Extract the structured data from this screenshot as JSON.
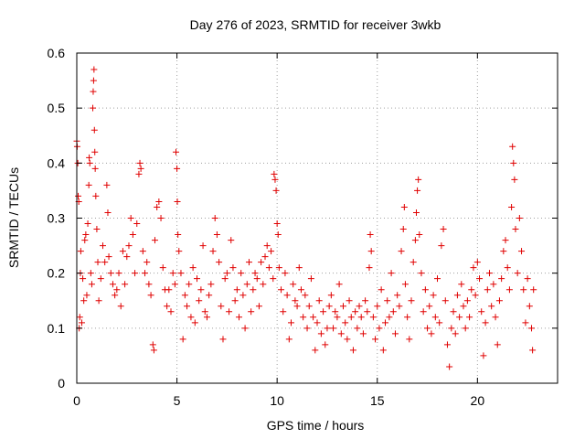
{
  "chart_data": {
    "type": "scatter",
    "title": "Day 276 of 2023, SRMTID for receiver 3wkb",
    "xlabel": "GPS time / hours",
    "ylabel": "SRMTID / TECUs",
    "xlim": [
      0,
      24
    ],
    "ylim": [
      0,
      0.6
    ],
    "xticks": [
      0,
      5,
      10,
      15,
      20
    ],
    "xtick_labels": [
      "0",
      "5",
      "10",
      "15",
      "20"
    ],
    "yticks": [
      0,
      0.1,
      0.2,
      0.3,
      0.4,
      0.5,
      0.6
    ],
    "ytick_labels": [
      "0",
      "0.1",
      "0.2",
      "0.3",
      "0.4",
      "0.5",
      "0.6"
    ],
    "grid": true,
    "marker": "+",
    "marker_color": "#e00000",
    "series": [
      {
        "name": "SRMTID",
        "points": [
          [
            0.0,
            0.44
          ],
          [
            0.02,
            0.43
          ],
          [
            0.05,
            0.4
          ],
          [
            0.07,
            0.34
          ],
          [
            0.1,
            0.33
          ],
          [
            0.12,
            0.1
          ],
          [
            0.15,
            0.12
          ],
          [
            0.18,
            0.2
          ],
          [
            0.2,
            0.24
          ],
          [
            0.25,
            0.11
          ],
          [
            0.3,
            0.19
          ],
          [
            0.35,
            0.15
          ],
          [
            0.4,
            0.26
          ],
          [
            0.45,
            0.27
          ],
          [
            0.5,
            0.16
          ],
          [
            0.55,
            0.29
          ],
          [
            0.6,
            0.36
          ],
          [
            0.62,
            0.41
          ],
          [
            0.65,
            0.4
          ],
          [
            0.7,
            0.2
          ],
          [
            0.75,
            0.18
          ],
          [
            0.8,
            0.5
          ],
          [
            0.82,
            0.53
          ],
          [
            0.84,
            0.55
          ],
          [
            0.86,
            0.57
          ],
          [
            0.88,
            0.46
          ],
          [
            0.9,
            0.42
          ],
          [
            0.92,
            0.39
          ],
          [
            0.95,
            0.34
          ],
          [
            1.0,
            0.28
          ],
          [
            1.05,
            0.22
          ],
          [
            1.1,
            0.15
          ],
          [
            1.2,
            0.19
          ],
          [
            1.3,
            0.25
          ],
          [
            1.4,
            0.22
          ],
          [
            1.5,
            0.36
          ],
          [
            1.55,
            0.31
          ],
          [
            1.6,
            0.23
          ],
          [
            1.7,
            0.2
          ],
          [
            1.8,
            0.18
          ],
          [
            1.9,
            0.16
          ],
          [
            2.0,
            0.17
          ],
          [
            2.1,
            0.2
          ],
          [
            2.2,
            0.14
          ],
          [
            2.3,
            0.24
          ],
          [
            2.4,
            0.18
          ],
          [
            2.5,
            0.23
          ],
          [
            2.6,
            0.25
          ],
          [
            2.7,
            0.3
          ],
          [
            2.8,
            0.27
          ],
          [
            2.9,
            0.2
          ],
          [
            3.0,
            0.29
          ],
          [
            3.1,
            0.38
          ],
          [
            3.15,
            0.4
          ],
          [
            3.2,
            0.39
          ],
          [
            3.3,
            0.24
          ],
          [
            3.4,
            0.2
          ],
          [
            3.5,
            0.22
          ],
          [
            3.6,
            0.18
          ],
          [
            3.7,
            0.16
          ],
          [
            3.8,
            0.07
          ],
          [
            3.85,
            0.06
          ],
          [
            3.9,
            0.26
          ],
          [
            4.0,
            0.32
          ],
          [
            4.1,
            0.33
          ],
          [
            4.2,
            0.3
          ],
          [
            4.3,
            0.21
          ],
          [
            4.4,
            0.17
          ],
          [
            4.5,
            0.14
          ],
          [
            4.6,
            0.17
          ],
          [
            4.7,
            0.13
          ],
          [
            4.8,
            0.2
          ],
          [
            4.9,
            0.18
          ],
          [
            4.95,
            0.42
          ],
          [
            5.0,
            0.39
          ],
          [
            5.02,
            0.33
          ],
          [
            5.05,
            0.27
          ],
          [
            5.1,
            0.24
          ],
          [
            5.2,
            0.2
          ],
          [
            5.3,
            0.08
          ],
          [
            5.4,
            0.16
          ],
          [
            5.5,
            0.14
          ],
          [
            5.6,
            0.18
          ],
          [
            5.7,
            0.12
          ],
          [
            5.8,
            0.21
          ],
          [
            5.9,
            0.11
          ],
          [
            6.0,
            0.19
          ],
          [
            6.1,
            0.15
          ],
          [
            6.2,
            0.17
          ],
          [
            6.3,
            0.25
          ],
          [
            6.4,
            0.13
          ],
          [
            6.5,
            0.12
          ],
          [
            6.6,
            0.16
          ],
          [
            6.7,
            0.18
          ],
          [
            6.8,
            0.24
          ],
          [
            6.9,
            0.3
          ],
          [
            7.0,
            0.27
          ],
          [
            7.1,
            0.22
          ],
          [
            7.2,
            0.14
          ],
          [
            7.3,
            0.08
          ],
          [
            7.4,
            0.19
          ],
          [
            7.5,
            0.2
          ],
          [
            7.6,
            0.13
          ],
          [
            7.7,
            0.26
          ],
          [
            7.8,
            0.21
          ],
          [
            7.9,
            0.15
          ],
          [
            8.0,
            0.17
          ],
          [
            8.1,
            0.12
          ],
          [
            8.2,
            0.2
          ],
          [
            8.3,
            0.16
          ],
          [
            8.4,
            0.1
          ],
          [
            8.5,
            0.18
          ],
          [
            8.6,
            0.22
          ],
          [
            8.7,
            0.13
          ],
          [
            8.8,
            0.17
          ],
          [
            8.9,
            0.2
          ],
          [
            9.0,
            0.19
          ],
          [
            9.1,
            0.14
          ],
          [
            9.2,
            0.22
          ],
          [
            9.3,
            0.18
          ],
          [
            9.4,
            0.23
          ],
          [
            9.5,
            0.25
          ],
          [
            9.6,
            0.21
          ],
          [
            9.7,
            0.24
          ],
          [
            9.8,
            0.19
          ],
          [
            9.85,
            0.38
          ],
          [
            9.9,
            0.37
          ],
          [
            9.95,
            0.35
          ],
          [
            10.0,
            0.29
          ],
          [
            10.05,
            0.27
          ],
          [
            10.1,
            0.21
          ],
          [
            10.2,
            0.17
          ],
          [
            10.3,
            0.13
          ],
          [
            10.4,
            0.2
          ],
          [
            10.5,
            0.16
          ],
          [
            10.6,
            0.08
          ],
          [
            10.7,
            0.11
          ],
          [
            10.8,
            0.18
          ],
          [
            10.9,
            0.15
          ],
          [
            11.0,
            0.14
          ],
          [
            11.1,
            0.21
          ],
          [
            11.2,
            0.17
          ],
          [
            11.3,
            0.12
          ],
          [
            11.4,
            0.16
          ],
          [
            11.5,
            0.1
          ],
          [
            11.6,
            0.14
          ],
          [
            11.7,
            0.19
          ],
          [
            11.8,
            0.12
          ],
          [
            11.9,
            0.06
          ],
          [
            12.0,
            0.11
          ],
          [
            12.1,
            0.15
          ],
          [
            12.2,
            0.09
          ],
          [
            12.3,
            0.13
          ],
          [
            12.4,
            0.07
          ],
          [
            12.5,
            0.1
          ],
          [
            12.6,
            0.14
          ],
          [
            12.7,
            0.16
          ],
          [
            12.8,
            0.1
          ],
          [
            12.9,
            0.13
          ],
          [
            13.0,
            0.12
          ],
          [
            13.1,
            0.18
          ],
          [
            13.2,
            0.09
          ],
          [
            13.3,
            0.14
          ],
          [
            13.4,
            0.11
          ],
          [
            13.5,
            0.08
          ],
          [
            13.6,
            0.15
          ],
          [
            13.7,
            0.12
          ],
          [
            13.8,
            0.06
          ],
          [
            13.9,
            0.13
          ],
          [
            14.0,
            0.1
          ],
          [
            14.1,
            0.14
          ],
          [
            14.2,
            0.12
          ],
          [
            14.3,
            0.09
          ],
          [
            14.4,
            0.15
          ],
          [
            14.5,
            0.13
          ],
          [
            14.6,
            0.21
          ],
          [
            14.65,
            0.27
          ],
          [
            14.7,
            0.24
          ],
          [
            14.8,
            0.12
          ],
          [
            14.9,
            0.08
          ],
          [
            15.0,
            0.14
          ],
          [
            15.1,
            0.1
          ],
          [
            15.2,
            0.17
          ],
          [
            15.3,
            0.06
          ],
          [
            15.4,
            0.11
          ],
          [
            15.5,
            0.15
          ],
          [
            15.6,
            0.12
          ],
          [
            15.7,
            0.2
          ],
          [
            15.8,
            0.13
          ],
          [
            15.9,
            0.09
          ],
          [
            16.0,
            0.16
          ],
          [
            16.1,
            0.14
          ],
          [
            16.2,
            0.24
          ],
          [
            16.3,
            0.28
          ],
          [
            16.35,
            0.32
          ],
          [
            16.4,
            0.18
          ],
          [
            16.5,
            0.12
          ],
          [
            16.6,
            0.08
          ],
          [
            16.7,
            0.15
          ],
          [
            16.8,
            0.22
          ],
          [
            16.9,
            0.26
          ],
          [
            16.95,
            0.31
          ],
          [
            17.0,
            0.35
          ],
          [
            17.05,
            0.37
          ],
          [
            17.1,
            0.27
          ],
          [
            17.2,
            0.2
          ],
          [
            17.3,
            0.13
          ],
          [
            17.4,
            0.17
          ],
          [
            17.5,
            0.1
          ],
          [
            17.6,
            0.14
          ],
          [
            17.7,
            0.09
          ],
          [
            17.8,
            0.16
          ],
          [
            17.9,
            0.12
          ],
          [
            18.0,
            0.19
          ],
          [
            18.1,
            0.11
          ],
          [
            18.2,
            0.25
          ],
          [
            18.3,
            0.28
          ],
          [
            18.4,
            0.15
          ],
          [
            18.5,
            0.07
          ],
          [
            18.6,
            0.03
          ],
          [
            18.7,
            0.1
          ],
          [
            18.8,
            0.13
          ],
          [
            18.9,
            0.09
          ],
          [
            19.0,
            0.16
          ],
          [
            19.1,
            0.12
          ],
          [
            19.2,
            0.18
          ],
          [
            19.3,
            0.14
          ],
          [
            19.4,
            0.1
          ],
          [
            19.5,
            0.15
          ],
          [
            19.6,
            0.12
          ],
          [
            19.7,
            0.17
          ],
          [
            19.8,
            0.21
          ],
          [
            19.9,
            0.16
          ],
          [
            20.0,
            0.22
          ],
          [
            20.1,
            0.19
          ],
          [
            20.2,
            0.13
          ],
          [
            20.3,
            0.05
          ],
          [
            20.4,
            0.11
          ],
          [
            20.5,
            0.17
          ],
          [
            20.6,
            0.2
          ],
          [
            20.7,
            0.14
          ],
          [
            20.8,
            0.18
          ],
          [
            20.9,
            0.12
          ],
          [
            21.0,
            0.07
          ],
          [
            21.1,
            0.15
          ],
          [
            21.2,
            0.19
          ],
          [
            21.3,
            0.24
          ],
          [
            21.4,
            0.26
          ],
          [
            21.5,
            0.21
          ],
          [
            21.6,
            0.17
          ],
          [
            21.7,
            0.32
          ],
          [
            21.75,
            0.43
          ],
          [
            21.8,
            0.4
          ],
          [
            21.85,
            0.37
          ],
          [
            21.9,
            0.28
          ],
          [
            22.0,
            0.2
          ],
          [
            22.1,
            0.3
          ],
          [
            22.2,
            0.24
          ],
          [
            22.3,
            0.17
          ],
          [
            22.4,
            0.11
          ],
          [
            22.5,
            0.19
          ],
          [
            22.6,
            0.14
          ],
          [
            22.7,
            0.1
          ],
          [
            22.75,
            0.06
          ],
          [
            22.8,
            0.17
          ]
        ]
      }
    ]
  }
}
